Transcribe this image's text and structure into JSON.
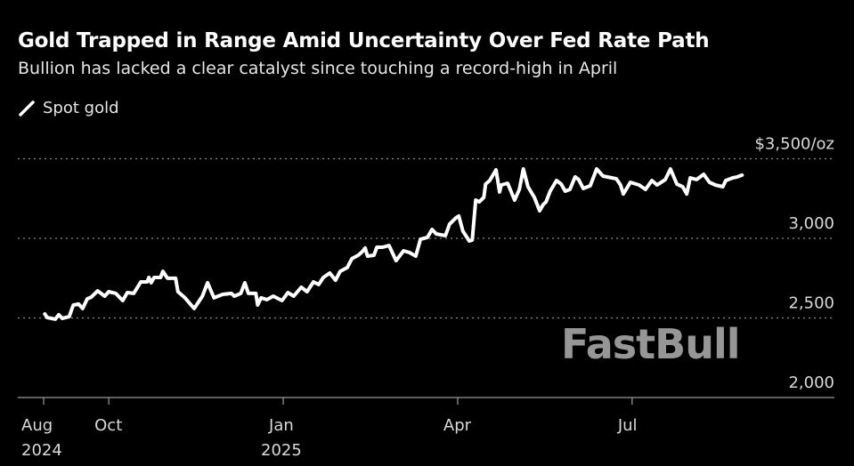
{
  "chart_data": {
    "type": "line",
    "title": "Gold Trapped in Range Amid Uncertainty Over Fed Rate Path",
    "subtitle": "Bullion has lacked a clear catalyst since touching a record-high in April",
    "xlabel": "",
    "ylabel": "",
    "ylim": [
      2000,
      3500
    ],
    "x_unit": "months since Aug 1, 2024",
    "grid": true,
    "legend_placement": "top-left",
    "y_ticks": [
      {
        "value": 3500,
        "label": "$3,500/oz"
      },
      {
        "value": 3000,
        "label": "3,000"
      },
      {
        "value": 2500,
        "label": "2,500"
      },
      {
        "value": 2000,
        "label": "2,000"
      }
    ],
    "x_ticks": [
      {
        "value": 0.88,
        "label": "Aug",
        "sublabel": "2024"
      },
      {
        "value": 2.0,
        "label": "Oct",
        "sublabel": ""
      },
      {
        "value": 5.0,
        "label": "Jan",
        "sublabel": "2025"
      },
      {
        "value": 8.0,
        "label": "Apr",
        "sublabel": ""
      },
      {
        "value": 11.0,
        "label": "Jul",
        "sublabel": ""
      }
    ],
    "series": [
      {
        "name": "Spot gold",
        "color": "#ffffff",
        "points": [
          [
            0.9,
            2525
          ],
          [
            0.94,
            2503
          ],
          [
            1.08,
            2492
          ],
          [
            1.14,
            2520
          ],
          [
            1.2,
            2497
          ],
          [
            1.32,
            2508
          ],
          [
            1.39,
            2581
          ],
          [
            1.48,
            2587
          ],
          [
            1.55,
            2559
          ],
          [
            1.63,
            2620
          ],
          [
            1.7,
            2631
          ],
          [
            1.81,
            2670
          ],
          [
            1.93,
            2637
          ],
          [
            2.0,
            2665
          ],
          [
            2.12,
            2654
          ],
          [
            2.24,
            2609
          ],
          [
            2.32,
            2659
          ],
          [
            2.43,
            2654
          ],
          [
            2.55,
            2726
          ],
          [
            2.66,
            2726
          ],
          [
            2.69,
            2754
          ],
          [
            2.73,
            2721
          ],
          [
            2.78,
            2754
          ],
          [
            2.89,
            2754
          ],
          [
            2.93,
            2793
          ],
          [
            3.01,
            2749
          ],
          [
            3.15,
            2749
          ],
          [
            3.19,
            2665
          ],
          [
            3.31,
            2626
          ],
          [
            3.47,
            2559
          ],
          [
            3.61,
            2637
          ],
          [
            3.7,
            2721
          ],
          [
            3.81,
            2626
          ],
          [
            3.96,
            2648
          ],
          [
            4.11,
            2654
          ],
          [
            4.16,
            2637
          ],
          [
            4.27,
            2654
          ],
          [
            4.34,
            2721
          ],
          [
            4.4,
            2654
          ],
          [
            4.53,
            2654
          ],
          [
            4.56,
            2581
          ],
          [
            4.62,
            2626
          ],
          [
            4.72,
            2615
          ],
          [
            4.83,
            2637
          ],
          [
            4.98,
            2609
          ],
          [
            5.08,
            2659
          ],
          [
            5.18,
            2637
          ],
          [
            5.31,
            2693
          ],
          [
            5.41,
            2665
          ],
          [
            5.52,
            2726
          ],
          [
            5.61,
            2710
          ],
          [
            5.69,
            2754
          ],
          [
            5.8,
            2782
          ],
          [
            5.9,
            2737
          ],
          [
            5.98,
            2793
          ],
          [
            6.1,
            2816
          ],
          [
            6.18,
            2872
          ],
          [
            6.29,
            2894
          ],
          [
            6.36,
            2916
          ],
          [
            6.41,
            2939
          ],
          [
            6.45,
            2888
          ],
          [
            6.56,
            2894
          ],
          [
            6.61,
            2944
          ],
          [
            6.71,
            2944
          ],
          [
            6.82,
            2955
          ],
          [
            6.94,
            2860
          ],
          [
            7.07,
            2922
          ],
          [
            7.17,
            2911
          ],
          [
            7.28,
            2888
          ],
          [
            7.36,
            2994
          ],
          [
            7.48,
            3006
          ],
          [
            7.56,
            3056
          ],
          [
            7.63,
            3028
          ],
          [
            7.79,
            3017
          ],
          [
            7.86,
            3089
          ],
          [
            7.97,
            3129
          ],
          [
            8.02,
            3140
          ],
          [
            8.09,
            3045
          ],
          [
            8.2,
            2983
          ],
          [
            8.25,
            2989
          ],
          [
            8.31,
            3240
          ],
          [
            8.37,
            3229
          ],
          [
            8.45,
            3257
          ],
          [
            8.48,
            3341
          ],
          [
            8.55,
            3363
          ],
          [
            8.66,
            3430
          ],
          [
            8.72,
            3291
          ],
          [
            8.75,
            3335
          ],
          [
            8.86,
            3346
          ],
          [
            8.98,
            3240
          ],
          [
            9.06,
            3307
          ],
          [
            9.13,
            3436
          ],
          [
            9.21,
            3324
          ],
          [
            9.32,
            3257
          ],
          [
            9.41,
            3173
          ],
          [
            9.47,
            3212
          ],
          [
            9.52,
            3229
          ],
          [
            9.59,
            3296
          ],
          [
            9.7,
            3363
          ],
          [
            9.78,
            3341
          ],
          [
            9.85,
            3296
          ],
          [
            9.93,
            3307
          ],
          [
            10.02,
            3386
          ],
          [
            10.08,
            3369
          ],
          [
            10.16,
            3313
          ],
          [
            10.28,
            3330
          ],
          [
            10.39,
            3436
          ],
          [
            10.5,
            3391
          ],
          [
            10.65,
            3380
          ],
          [
            10.73,
            3374
          ],
          [
            10.8,
            3335
          ],
          [
            10.85,
            3279
          ],
          [
            10.97,
            3352
          ],
          [
            11.12,
            3335
          ],
          [
            11.23,
            3307
          ],
          [
            11.34,
            3363
          ],
          [
            11.43,
            3335
          ],
          [
            11.57,
            3369
          ],
          [
            11.66,
            3436
          ],
          [
            11.77,
            3341
          ],
          [
            11.87,
            3324
          ],
          [
            11.94,
            3279
          ],
          [
            12.0,
            3380
          ],
          [
            12.11,
            3369
          ],
          [
            12.23,
            3402
          ],
          [
            12.33,
            3352
          ],
          [
            12.43,
            3335
          ],
          [
            12.56,
            3324
          ],
          [
            12.61,
            3363
          ],
          [
            12.73,
            3380
          ],
          [
            12.81,
            3386
          ],
          [
            12.89,
            3397
          ]
        ]
      }
    ]
  },
  "legend": {
    "label": "Spot gold"
  },
  "watermark": "FastBull",
  "colors": {
    "background": "#000000",
    "line": "#ffffff",
    "grid": "#808080",
    "axis_text": "#d9d9d9"
  }
}
